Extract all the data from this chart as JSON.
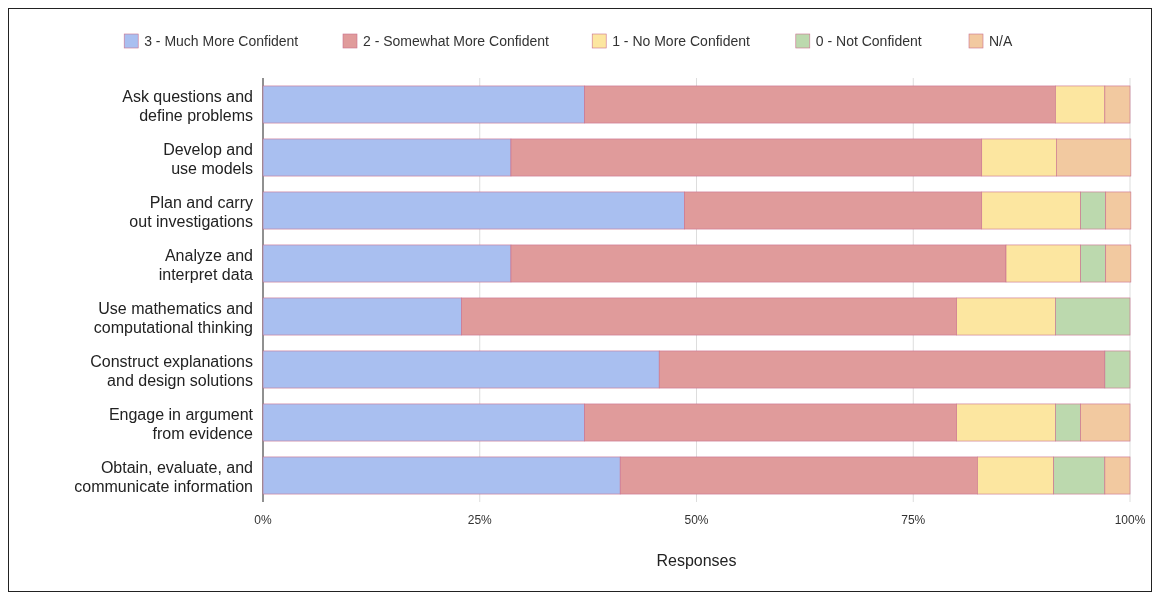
{
  "chart_data": {
    "type": "bar",
    "orientation": "horizontal",
    "stacked": true,
    "xlabel": "Responses",
    "categories": [
      "Ask questions and\ndefine problems",
      "Develop and\nuse models",
      "Plan and carry\nout investigations",
      "Analyze and\ninterpret data",
      "Use mathematics and\ncomputational thinking",
      "Construct explanations\nand design solutions",
      "Engage in argument\nfrom evidence",
      "Obtain, evaluate, and\ncommunicate information"
    ],
    "series": [
      {
        "name": "3 - Much More Confident",
        "color": "#a9bff0",
        "values": [
          37.1,
          28.6,
          48.6,
          28.6,
          22.9,
          45.7,
          37.1,
          41.2
        ]
      },
      {
        "name": "2 - Somewhat More Confident",
        "color": "#e09b9b",
        "values": [
          54.3,
          54.3,
          34.3,
          57.1,
          57.1,
          51.4,
          42.9,
          41.2
        ]
      },
      {
        "name": "1 - No More Confident",
        "color": "#fce6a0",
        "values": [
          5.7,
          8.6,
          11.4,
          8.6,
          11.4,
          0,
          11.4,
          8.8
        ]
      },
      {
        "name": "0 - Not Confident",
        "color": "#bcd9ae",
        "values": [
          0,
          0,
          2.9,
          2.9,
          8.6,
          2.9,
          2.9,
          5.9
        ]
      },
      {
        "name": "N/A",
        "color": "#f2c9a0",
        "values": [
          2.9,
          8.6,
          2.9,
          2.9,
          0,
          0,
          5.7,
          2.9
        ]
      }
    ],
    "xlim": [
      0,
      100
    ],
    "xticks": [
      {
        "value": 0,
        "label": "0%"
      },
      {
        "value": 25,
        "label": "25%"
      },
      {
        "value": 50,
        "label": "50%"
      },
      {
        "value": 75,
        "label": "75%"
      },
      {
        "value": 100,
        "label": "100%"
      }
    ],
    "grid": "x",
    "legend": "top"
  }
}
